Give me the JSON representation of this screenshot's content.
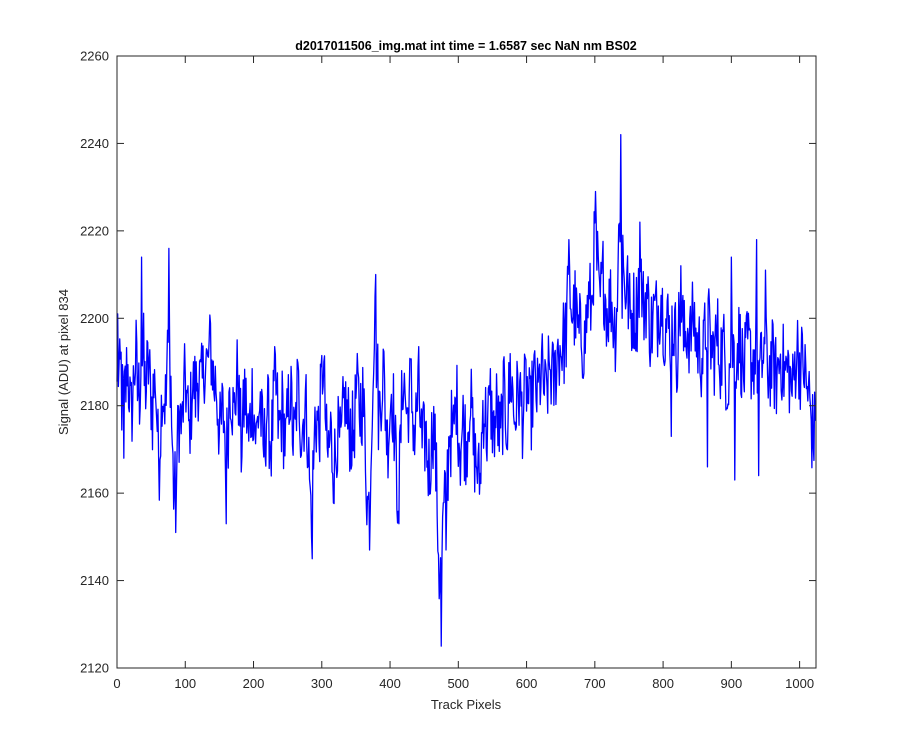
{
  "chart_data": {
    "type": "line",
    "title": "d2017011506_img.mat int time = 1.6587 sec  NaN nm BS02",
    "xlabel": "Track Pixels",
    "ylabel": "Signal (ADU) at pixel 834",
    "xlim": [
      0,
      1024
    ],
    "ylim": [
      2120,
      2260
    ],
    "xticks": [
      0,
      100,
      200,
      300,
      400,
      500,
      600,
      700,
      800,
      900,
      1000
    ],
    "yticks": [
      2120,
      2140,
      2160,
      2180,
      2200,
      2220,
      2240,
      2260
    ],
    "grid": false,
    "series": [
      {
        "color": "#0000ff",
        "points_count": 1024,
        "anchors": [
          [
            0,
            2182
          ],
          [
            1,
            2201
          ],
          [
            4,
            2175
          ],
          [
            6,
            2198
          ],
          [
            10,
            2168
          ],
          [
            15,
            2200
          ],
          [
            20,
            2170
          ],
          [
            28,
            2199
          ],
          [
            33,
            2165
          ],
          [
            36,
            2214
          ],
          [
            40,
            2176
          ],
          [
            47,
            2196
          ],
          [
            52,
            2167
          ],
          [
            56,
            2203
          ],
          [
            60,
            2161
          ],
          [
            62,
            2157
          ],
          [
            66,
            2196
          ],
          [
            72,
            2168
          ],
          [
            76,
            2216
          ],
          [
            80,
            2170
          ],
          [
            86,
            2151
          ],
          [
            90,
            2188
          ],
          [
            95,
            2166
          ],
          [
            100,
            2196
          ],
          [
            106,
            2163
          ],
          [
            110,
            2194
          ],
          [
            115,
            2176
          ],
          [
            118,
            2192
          ],
          [
            125,
            2178
          ],
          [
            128,
            2198
          ],
          [
            133,
            2181
          ],
          [
            137,
            2204
          ],
          [
            142,
            2174
          ],
          [
            145,
            2196
          ],
          [
            150,
            2166
          ],
          [
            157,
            2188
          ],
          [
            160,
            2153
          ],
          [
            165,
            2196
          ],
          [
            171,
            2170
          ],
          [
            177,
            2197
          ],
          [
            182,
            2160
          ],
          [
            187,
            2192
          ],
          [
            193,
            2164
          ],
          [
            198,
            2190
          ],
          [
            204,
            2166
          ],
          [
            210,
            2190
          ],
          [
            214,
            2160
          ],
          [
            220,
            2186
          ],
          [
            226,
            2164
          ],
          [
            232,
            2194
          ],
          [
            237,
            2166
          ],
          [
            242,
            2186
          ],
          [
            247,
            2164
          ],
          [
            253,
            2190
          ],
          [
            258,
            2172
          ],
          [
            261,
            2162
          ],
          [
            264,
            2196
          ],
          [
            270,
            2168
          ],
          [
            276,
            2186
          ],
          [
            282,
            2164
          ],
          [
            286,
            2145
          ],
          [
            290,
            2188
          ],
          [
            296,
            2166
          ],
          [
            302,
            2200
          ],
          [
            308,
            2158
          ],
          [
            313,
            2182
          ],
          [
            318,
            2156
          ],
          [
            322,
            2180
          ],
          [
            328,
            2164
          ],
          [
            334,
            2190
          ],
          [
            338,
            2168
          ],
          [
            342,
            2182
          ],
          [
            346,
            2163
          ],
          [
            350,
            2190
          ],
          [
            356,
            2174
          ],
          [
            360,
            2188
          ],
          [
            366,
            2160
          ],
          [
            370,
            2147
          ],
          [
            374,
            2188
          ],
          [
            379,
            2210
          ],
          [
            383,
            2168
          ],
          [
            390,
            2196
          ],
          [
            396,
            2164
          ],
          [
            402,
            2190
          ],
          [
            407,
            2172
          ],
          [
            413,
            2153
          ],
          [
            419,
            2196
          ],
          [
            425,
            2170
          ],
          [
            430,
            2192
          ],
          [
            436,
            2166
          ],
          [
            442,
            2192
          ],
          [
            447,
            2162
          ],
          [
            452,
            2180
          ],
          [
            458,
            2156
          ],
          [
            462,
            2184
          ],
          [
            468,
            2164
          ],
          [
            475,
            2125
          ],
          [
            478,
            2170
          ],
          [
            482,
            2147
          ],
          [
            487,
            2184
          ],
          [
            492,
            2164
          ],
          [
            497,
            2190
          ],
          [
            503,
            2162
          ],
          [
            507,
            2184
          ],
          [
            512,
            2162
          ],
          [
            517,
            2192
          ],
          [
            522,
            2166
          ],
          [
            528,
            2170
          ],
          [
            532,
            2152
          ],
          [
            536,
            2190
          ],
          [
            542,
            2168
          ],
          [
            547,
            2188
          ],
          [
            552,
            2166
          ],
          [
            556,
            2186
          ],
          [
            562,
            2164
          ],
          [
            566,
            2190
          ],
          [
            572,
            2168
          ],
          [
            576,
            2196
          ],
          [
            582,
            2172
          ],
          [
            588,
            2188
          ],
          [
            594,
            2174
          ],
          [
            600,
            2190
          ],
          [
            605,
            2172
          ],
          [
            611,
            2190
          ],
          [
            616,
            2178
          ],
          [
            622,
            2192
          ],
          [
            628,
            2178
          ],
          [
            634,
            2192
          ],
          [
            640,
            2182
          ],
          [
            646,
            2196
          ],
          [
            650,
            2190
          ],
          [
            654,
            2198
          ],
          [
            658,
            2190
          ],
          [
            662,
            2218
          ],
          [
            666,
            2196
          ],
          [
            671,
            2206
          ],
          [
            676,
            2192
          ],
          [
            681,
            2200
          ],
          [
            685,
            2188
          ],
          [
            690,
            2210
          ],
          [
            695,
            2196
          ],
          [
            701,
            2229
          ],
          [
            706,
            2196
          ],
          [
            712,
            2214
          ],
          [
            718,
            2198
          ],
          [
            724,
            2208
          ],
          [
            730,
            2192
          ],
          [
            735,
            2214
          ],
          [
            738,
            2242
          ],
          [
            742,
            2200
          ],
          [
            747,
            2214
          ],
          [
            752,
            2194
          ],
          [
            756,
            2206
          ],
          [
            762,
            2196
          ],
          [
            766,
            2222
          ],
          [
            770,
            2196
          ],
          [
            776,
            2210
          ],
          [
            782,
            2192
          ],
          [
            786,
            2204
          ],
          [
            792,
            2198
          ],
          [
            797,
            2210
          ],
          [
            802,
            2194
          ],
          [
            806,
            2202
          ],
          [
            812,
            2192
          ],
          [
            816,
            2206
          ],
          [
            820,
            2184
          ],
          [
            826,
            2212
          ],
          [
            830,
            2188
          ],
          [
            836,
            2204
          ],
          [
            840,
            2188
          ],
          [
            844,
            2208
          ],
          [
            849,
            2190
          ],
          [
            854,
            2196
          ],
          [
            859,
            2186
          ],
          [
            863,
            2204
          ],
          [
            869,
            2194
          ],
          [
            875,
            2190
          ],
          [
            880,
            2200
          ],
          [
            884,
            2186
          ],
          [
            888,
            2198
          ],
          [
            894,
            2182
          ],
          [
            900,
            2196
          ],
          [
            906,
            2190
          ],
          [
            912,
            2198
          ],
          [
            918,
            2184
          ],
          [
            924,
            2196
          ],
          [
            930,
            2188
          ],
          [
            936,
            2194
          ],
          [
            942,
            2184
          ],
          [
            948,
            2196
          ],
          [
            954,
            2186
          ],
          [
            960,
            2192
          ],
          [
            966,
            2184
          ],
          [
            972,
            2194
          ],
          [
            978,
            2186
          ],
          [
            984,
            2190
          ],
          [
            990,
            2180
          ],
          [
            996,
            2198
          ],
          [
            1002,
            2184
          ],
          [
            1006,
            2196
          ],
          [
            1010,
            2178
          ],
          [
            1014,
            2188
          ],
          [
            1018,
            2170
          ],
          [
            1023,
            2176
          ]
        ],
        "noise_amplitude": 10,
        "spikes": [
          [
            1,
            2201
          ],
          [
            10,
            2168
          ],
          [
            36,
            2214
          ],
          [
            76,
            2216
          ],
          [
            86,
            2151
          ],
          [
            160,
            2153
          ],
          [
            286,
            2145
          ],
          [
            370,
            2147
          ],
          [
            379,
            2210
          ],
          [
            413,
            2153
          ],
          [
            475,
            2125
          ],
          [
            482,
            2147
          ],
          [
            662,
            2218
          ],
          [
            701,
            2229
          ],
          [
            738,
            2242
          ],
          [
            766,
            2222
          ],
          [
            826,
            2212
          ],
          [
            740,
            2200
          ],
          [
            900,
            2214
          ],
          [
            937,
            2218
          ],
          [
            950,
            2211
          ],
          [
            812,
            2173
          ],
          [
            865,
            2166
          ],
          [
            905,
            2163
          ],
          [
            940,
            2164
          ]
        ]
      }
    ]
  }
}
